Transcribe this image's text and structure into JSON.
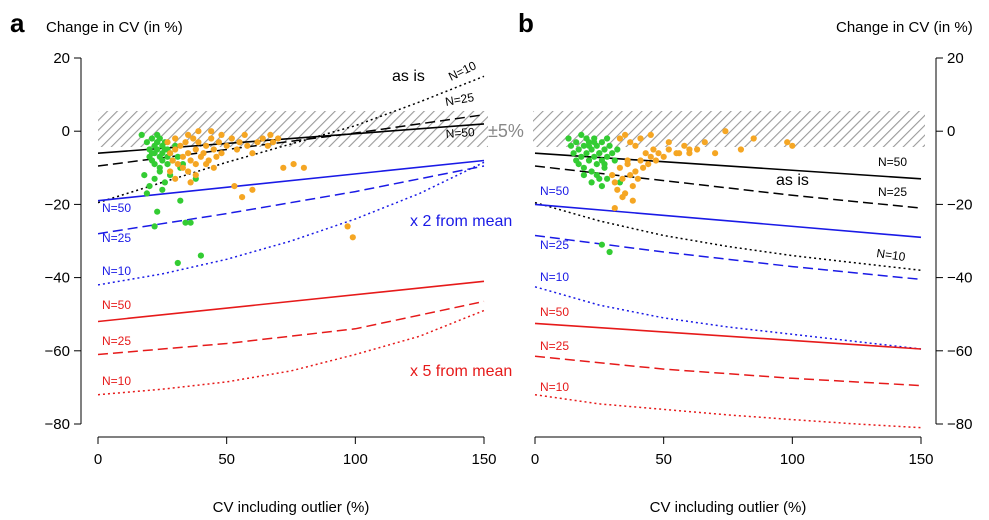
{
  "figure": {
    "panel_a_letter": "a",
    "panel_b_letter": "b",
    "pm5_label": "±5%"
  },
  "chart_data": [
    {
      "type": "line",
      "panel": "a",
      "ylabel": "Change in CV (in %)",
      "xlabel": "CV including outlier (%)",
      "xlim": [
        0,
        150
      ],
      "ylim": [
        -80,
        20
      ],
      "xticks": [
        0,
        50,
        100,
        150
      ],
      "yticks": [
        -80,
        -60,
        -40,
        -20,
        0,
        20
      ],
      "xtick_labels": [
        "0",
        "50",
        "100",
        "150"
      ],
      "ytick_labels": [
        "−80",
        "−60",
        "−40",
        "−20",
        "0",
        "20"
      ],
      "band": {
        "label": "±5%",
        "y_min": -5,
        "y_max": 5,
        "pattern": "hatched-gray"
      },
      "groups": [
        {
          "label": "as is",
          "color": "#000000"
        },
        {
          "label": "x 2 from mean",
          "color": "#1a1ae6"
        },
        {
          "label": "x 5 from mean",
          "color": "#e61a1a"
        }
      ],
      "series": [
        {
          "name": "N=10",
          "group": "as is",
          "color": "#000000",
          "style": "dotted",
          "x": [
            0,
            25,
            50,
            75,
            100,
            125,
            150
          ],
          "y": [
            -19.5,
            -14,
            -8.5,
            -3.5,
            1.5,
            8,
            15
          ]
        },
        {
          "name": "N=25",
          "group": "as is",
          "color": "#000000",
          "style": "dashed",
          "x": [
            0,
            50,
            100,
            150
          ],
          "y": [
            -9.5,
            -5,
            -0.5,
            4.5
          ]
        },
        {
          "name": "N=50",
          "group": "as is",
          "color": "#000000",
          "style": "solid",
          "x": [
            0,
            150
          ],
          "y": [
            -6,
            2
          ]
        },
        {
          "name": "N=50",
          "group": "x 2 from mean",
          "color": "#1a1ae6",
          "style": "solid",
          "x": [
            0,
            150
          ],
          "y": [
            -19,
            -8
          ]
        },
        {
          "name": "N=25",
          "group": "x 2 from mean",
          "color": "#1a1ae6",
          "style": "dashed",
          "x": [
            0,
            50,
            100,
            150
          ],
          "y": [
            -28,
            -22.5,
            -16.5,
            -9.5
          ]
        },
        {
          "name": "N=10",
          "group": "x 2 from mean",
          "color": "#1a1ae6",
          "style": "dotted",
          "x": [
            0,
            25,
            50,
            75,
            100,
            125,
            150
          ],
          "y": [
            -42,
            -39,
            -35,
            -30,
            -24,
            -17,
            -8.5
          ]
        },
        {
          "name": "N=50",
          "group": "x 5 from mean",
          "color": "#e61a1a",
          "style": "solid",
          "x": [
            0,
            150
          ],
          "y": [
            -52,
            -41
          ]
        },
        {
          "name": "N=25",
          "group": "x 5 from mean",
          "color": "#e61a1a",
          "style": "dashed",
          "x": [
            0,
            50,
            100,
            150
          ],
          "y": [
            -61,
            -58,
            -54,
            -46.5
          ]
        },
        {
          "name": "N=10",
          "group": "x 5 from mean",
          "color": "#e61a1a",
          "style": "dotted",
          "x": [
            0,
            25,
            50,
            75,
            100,
            125,
            150
          ],
          "y": [
            -72,
            -70.5,
            -68.5,
            -65.5,
            -61,
            -56,
            -49
          ]
        }
      ],
      "points": [
        {
          "color": "#33cc33",
          "x": [
            17,
            19,
            20,
            20,
            21,
            21,
            22,
            22,
            22,
            23,
            23,
            23,
            24,
            24,
            24,
            25,
            25,
            25,
            26,
            26,
            27,
            27,
            28,
            29,
            30,
            31,
            32,
            33,
            18,
            20,
            22,
            24,
            26,
            28,
            21,
            23,
            25,
            27,
            19,
            32,
            34,
            23,
            22,
            31,
            40,
            36,
            38
          ],
          "y": [
            -1,
            -3,
            -5,
            -7,
            -2,
            -8,
            -4,
            -6,
            -9,
            -1,
            -3,
            -5,
            -7,
            -10,
            -2,
            -4,
            -6,
            -8,
            -3,
            -5,
            -7,
            -9,
            -6,
            -8,
            -4,
            -7,
            -10,
            -9,
            -12,
            -15,
            -13,
            -11,
            -14,
            -12,
            -6,
            -3,
            -16,
            -5,
            -17,
            -19,
            -25,
            -22,
            -26,
            -36,
            -34,
            -25,
            -13
          ]
        },
        {
          "color": "#f5a623",
          "x": [
            27,
            28,
            29,
            30,
            30,
            31,
            32,
            33,
            34,
            35,
            35,
            36,
            37,
            38,
            38,
            39,
            40,
            41,
            42,
            43,
            44,
            45,
            46,
            47,
            48,
            50,
            52,
            54,
            55,
            57,
            58,
            60,
            62,
            64,
            66,
            67,
            68,
            70,
            35,
            33,
            38,
            42,
            45,
            30,
            53,
            56,
            60,
            72,
            76,
            80,
            97,
            99,
            39,
            44,
            48,
            36,
            28
          ],
          "y": [
            -3,
            -6,
            -8,
            -2,
            -5,
            -9,
            -4,
            -7,
            -3,
            -1,
            -6,
            -8,
            -2,
            -5,
            -9,
            -3,
            -7,
            -6,
            -4,
            -8,
            -2,
            -5,
            -7,
            -3,
            -6,
            -4,
            -2,
            -5,
            -3,
            -1,
            -4,
            -6,
            -3,
            -2,
            -4,
            -1,
            -3,
            -2,
            -11,
            -10,
            -12,
            -9,
            -10,
            -13,
            -15,
            -18,
            -16,
            -10,
            -9,
            -10,
            -26,
            -29,
            0,
            0,
            -1,
            -14,
            -11
          ]
        }
      ],
      "annotations": {
        "as_is": "as is",
        "x2": "x 2 from mean",
        "x5": "x 5 from mean",
        "black_n10": "N=10",
        "black_n25": "N=25",
        "black_n50": "N=50",
        "blue_n50": "N=50",
        "blue_n25": "N=25",
        "blue_n10": "N=10",
        "red_n50": "N=50",
        "red_n25": "N=25",
        "red_n10": "N=10"
      }
    },
    {
      "type": "line",
      "panel": "b",
      "ylabel": "Change in CV (in %)",
      "xlabel": "CV including outlier (%)",
      "xlim": [
        0,
        150
      ],
      "ylim": [
        -80,
        20
      ],
      "xticks": [
        0,
        50,
        100,
        150
      ],
      "yticks": [
        -80,
        -60,
        -40,
        -20,
        0,
        20
      ],
      "xtick_labels": [
        "0",
        "50",
        "100",
        "150"
      ],
      "ytick_labels": [
        "−80",
        "−60",
        "−40",
        "−20",
        "0",
        "20"
      ],
      "band": {
        "y_min": -5,
        "y_max": 5,
        "pattern": "hatched-gray"
      },
      "series": [
        {
          "name": "N=50",
          "group": "as is",
          "color": "#000000",
          "style": "solid",
          "x": [
            0,
            150
          ],
          "y": [
            -6,
            -13
          ]
        },
        {
          "name": "N=25",
          "group": "as is",
          "color": "#000000",
          "style": "dashed",
          "x": [
            0,
            50,
            100,
            150
          ],
          "y": [
            -9.5,
            -13.5,
            -17.5,
            -21
          ]
        },
        {
          "name": "N=10",
          "group": "as is",
          "color": "#000000",
          "style": "dotted",
          "x": [
            0,
            25,
            50,
            75,
            100,
            125,
            150
          ],
          "y": [
            -19.5,
            -24.5,
            -28.5,
            -31.5,
            -34,
            -36,
            -38
          ]
        },
        {
          "name": "N=50",
          "group": "x 2 from mean",
          "color": "#1a1ae6",
          "style": "solid",
          "x": [
            0,
            150
          ],
          "y": [
            -20,
            -29
          ]
        },
        {
          "name": "N=25",
          "group": "x 2 from mean",
          "color": "#1a1ae6",
          "style": "dashed",
          "x": [
            0,
            50,
            100,
            150
          ],
          "y": [
            -28.5,
            -33,
            -37,
            -40.5
          ]
        },
        {
          "name": "N=10",
          "group": "x 2 from mean",
          "color": "#1a1ae6",
          "style": "dotted",
          "x": [
            0,
            25,
            50,
            75,
            100,
            125,
            150
          ],
          "y": [
            -42.5,
            -47.5,
            -51,
            -53.5,
            -55.5,
            -57.5,
            -59.5
          ]
        },
        {
          "name": "N=50",
          "group": "x 5 from mean",
          "color": "#e61a1a",
          "style": "solid",
          "x": [
            0,
            150
          ],
          "y": [
            -52.5,
            -59.5
          ]
        },
        {
          "name": "N=25",
          "group": "x 5 from mean",
          "color": "#e61a1a",
          "style": "dashed",
          "x": [
            0,
            50,
            100,
            150
          ],
          "y": [
            -61.5,
            -65,
            -67.5,
            -69.5
          ]
        },
        {
          "name": "N=10",
          "group": "x 5 from mean",
          "color": "#e61a1a",
          "style": "dotted",
          "x": [
            0,
            25,
            50,
            75,
            100,
            125,
            150
          ],
          "y": [
            -72,
            -74.5,
            -76,
            -77.5,
            -78.8,
            -80,
            -81
          ]
        }
      ],
      "points": [
        {
          "color": "#33cc33",
          "x": [
            13,
            14,
            15,
            16,
            16,
            17,
            17,
            18,
            18,
            19,
            19,
            20,
            20,
            21,
            21,
            22,
            22,
            23,
            23,
            24,
            24,
            25,
            25,
            26,
            26,
            27,
            27,
            28,
            28,
            29,
            30,
            31,
            32,
            19,
            22,
            24,
            26,
            28,
            21,
            23,
            25,
            27,
            26,
            29,
            33
          ],
          "y": [
            -2,
            -4,
            -6,
            -3,
            -8,
            -5,
            -9,
            -1,
            -7,
            -4,
            -10,
            -2,
            -6,
            -8,
            -3,
            -5,
            -11,
            -7,
            -2,
            -4,
            -9,
            -6,
            -13,
            -3,
            -8,
            -5,
            -10,
            -7,
            -2,
            -4,
            -6,
            -8,
            -5,
            -12,
            -14,
            -12,
            -15,
            -13,
            -4,
            -3,
            -6,
            -9,
            -31,
            -33,
            -14
          ]
        },
        {
          "color": "#f5a623",
          "x": [
            30,
            31,
            32,
            33,
            34,
            35,
            36,
            37,
            38,
            39,
            40,
            41,
            42,
            43,
            44,
            45,
            46,
            47,
            48,
            50,
            52,
            55,
            58,
            60,
            63,
            66,
            70,
            74,
            80,
            85,
            98,
            100,
            33,
            35,
            37,
            39,
            41,
            45,
            52,
            56,
            60,
            31,
            34,
            38,
            36
          ],
          "y": [
            -12,
            -14,
            -16,
            -10,
            -13,
            -17,
            -9,
            -12,
            -15,
            -11,
            -13,
            -8,
            -10,
            -6,
            -9,
            -7,
            -5,
            -8,
            -6,
            -7,
            -5,
            -6,
            -4,
            -6,
            -5,
            -3,
            -6,
            0,
            -5,
            -2,
            -3,
            -4,
            -2,
            -1,
            -3,
            -4,
            -2,
            -1,
            -3,
            -6,
            -5,
            -21,
            -18,
            -19,
            -8
          ]
        }
      ],
      "annotations": {
        "as_is": "as is",
        "black_n50": "N=50",
        "black_n25": "N=25",
        "black_n10": "N=10",
        "blue_n50": "N=50",
        "blue_n25": "N=25",
        "blue_n10": "N=10",
        "red_n50": "N=50",
        "red_n25": "N=25",
        "red_n10": "N=10"
      }
    }
  ]
}
